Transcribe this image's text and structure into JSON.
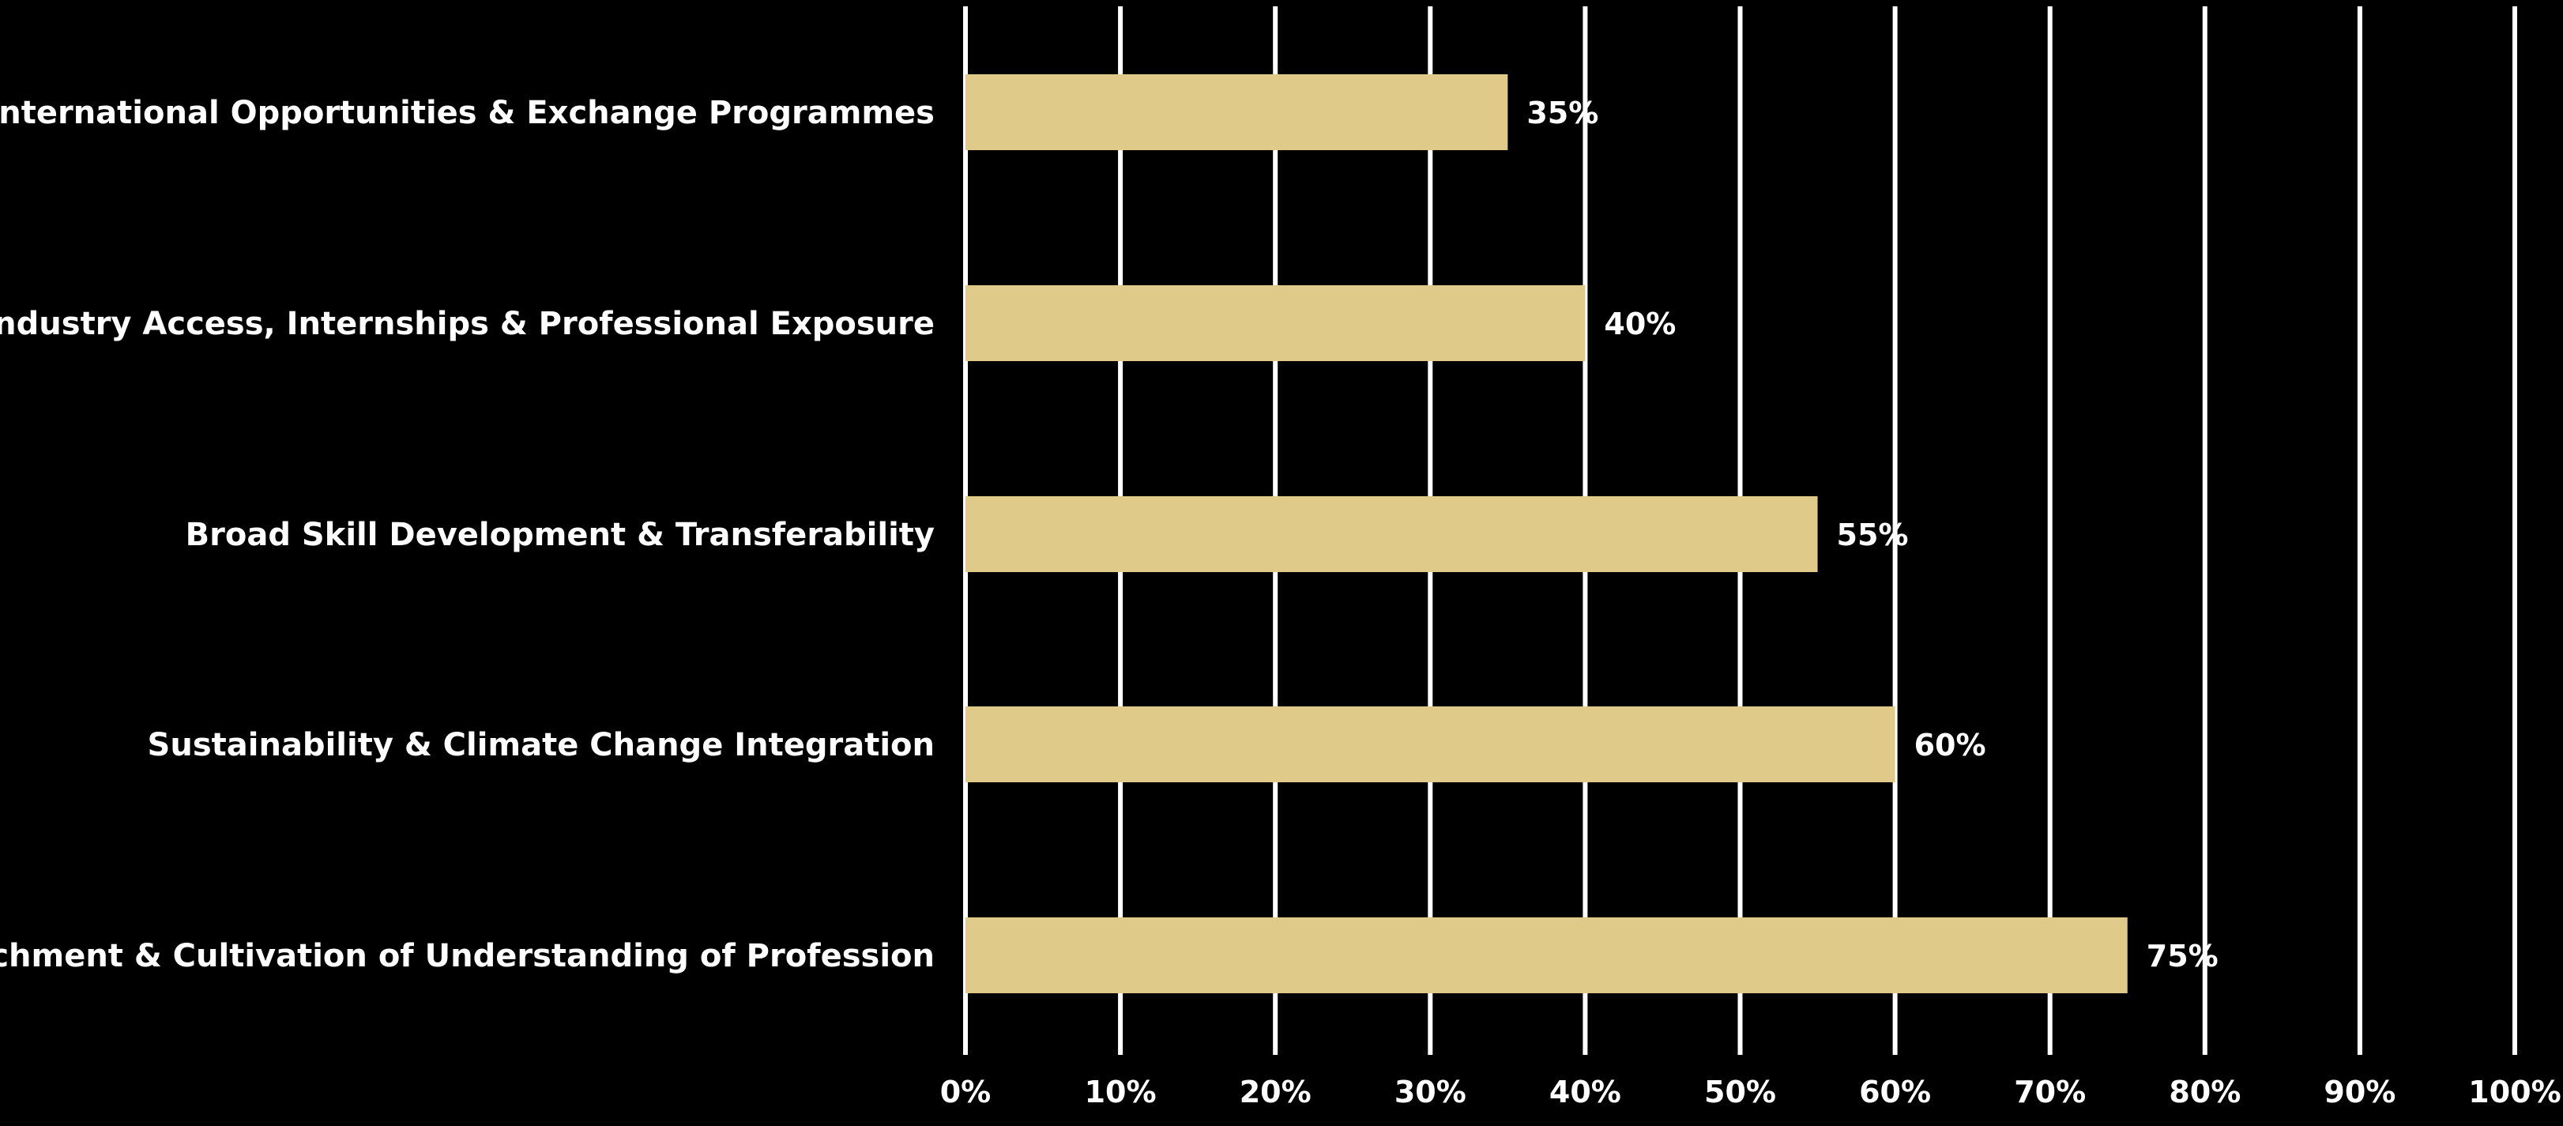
{
  "chart_data": {
    "type": "bar",
    "orientation": "horizontal",
    "categories": [
      "International Opportunities & Exchange Programmes",
      "Industry Access, Internships & Professional Exposure",
      "Broad Skill Development & Transferability",
      "Sustainability & Climate Change Integration",
      "Enrichment & Cultivation of Understanding of Profession"
    ],
    "values": [
      35,
      40,
      55,
      60,
      75
    ],
    "value_labels": [
      "35%",
      "40%",
      "55%",
      "60%",
      "75%"
    ],
    "xlim": [
      0,
      100
    ],
    "x_ticks": [
      0,
      10,
      20,
      30,
      40,
      50,
      60,
      70,
      80,
      90,
      100
    ],
    "x_tick_labels": [
      "0%",
      "10%",
      "20%",
      "30%",
      "40%",
      "50%",
      "60%",
      "70%",
      "80%",
      "90%",
      "100%"
    ],
    "grid": "vertical",
    "legend": "none",
    "colors": {
      "background": "#000000",
      "bar": "#dfca8a",
      "grid": "#ffffff",
      "text": "#ffffff"
    }
  }
}
